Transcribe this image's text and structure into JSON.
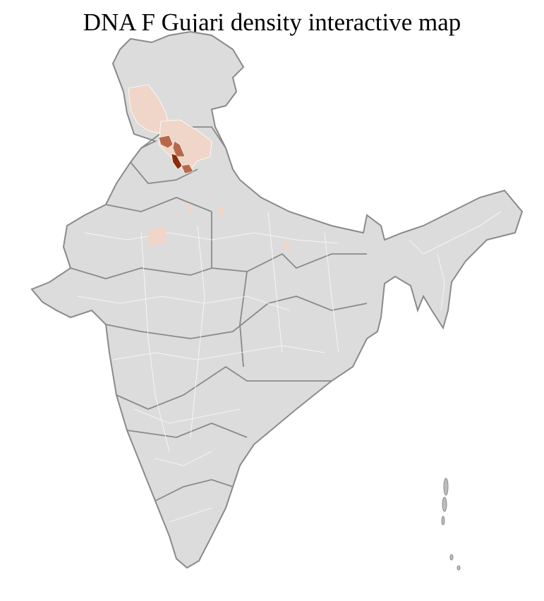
{
  "title": "DNA F Gujari density interactive map",
  "colors": {
    "base": "#dcdcdc",
    "state_border": "#8a8a8a",
    "district_border": "#ffffff",
    "density_low": "#f0d6c8",
    "density_mid": "#b8684a",
    "density_high": "#8a2c0c"
  }
}
